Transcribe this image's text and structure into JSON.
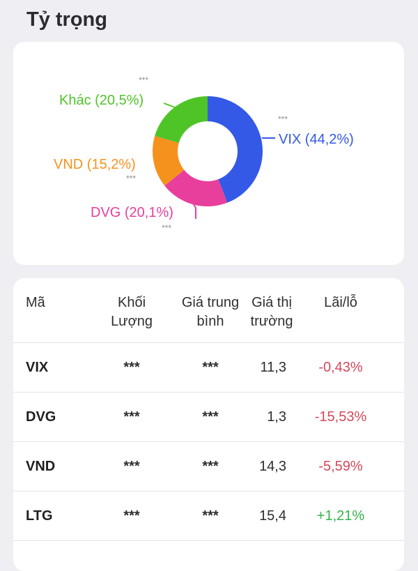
{
  "section_title": "Tỷ trọng",
  "colors": {
    "vix": "#3459e6",
    "dvg": "#e83e9c",
    "vnd": "#f5921e",
    "other": "#4fc427",
    "negative": "#d4485a",
    "positive": "#34b34a"
  },
  "chart_data": {
    "type": "pie",
    "variant": "donut",
    "slices": [
      {
        "label": "VIX (44,2%)",
        "value": 44.2,
        "color": "#3459e6",
        "hidden_value": "***"
      },
      {
        "label": "DVG (20,1%)",
        "value": 20.1,
        "color": "#e83e9c",
        "hidden_value": "***"
      },
      {
        "label": "VND (15,2%)",
        "value": 15.2,
        "color": "#f5921e",
        "hidden_value": "***"
      },
      {
        "label": "Khác (20,5%)",
        "value": 20.5,
        "color": "#4fc427",
        "hidden_value": "***"
      }
    ]
  },
  "table": {
    "headers": {
      "code": "Mã",
      "volume_1": "Khối",
      "volume_2": "Lượng",
      "avg_1": "Giá trung",
      "avg_2": "bình",
      "market_1": "Giá thị",
      "market_2": "trường",
      "pl": "Lãi/lỗ"
    },
    "rows": [
      {
        "code": "VIX",
        "volume": "***",
        "avg_price": "***",
        "market_price": "11,3",
        "pl": "-0,43%",
        "pl_sign": "neg"
      },
      {
        "code": "DVG",
        "volume": "***",
        "avg_price": "***",
        "market_price": "1,3",
        "pl": "-15,53%",
        "pl_sign": "neg"
      },
      {
        "code": "VND",
        "volume": "***",
        "avg_price": "***",
        "market_price": "14,3",
        "pl": "-5,59%",
        "pl_sign": "neg"
      },
      {
        "code": "LTG",
        "volume": "***",
        "avg_price": "***",
        "market_price": "15,4",
        "pl": "+1,21%",
        "pl_sign": "pos"
      }
    ]
  }
}
